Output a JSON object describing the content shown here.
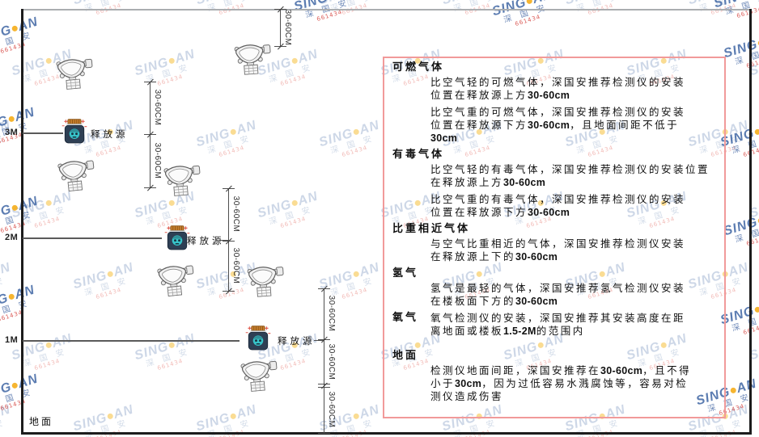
{
  "watermark": {
    "prefix": "SING",
    "suffix": "AN",
    "sub": "深 国 安",
    "code": "661434"
  },
  "diagram": {
    "heights": [
      "3M",
      "2M",
      "1M"
    ],
    "ground": "地面",
    "sources": [
      {
        "label": "释放源"
      },
      {
        "label": "释放源"
      },
      {
        "label": "释放源"
      }
    ],
    "dims": [
      "30-60CM",
      "30-60CM",
      "30-60CM",
      "30-60CM",
      "30-60CM",
      "30-60CM",
      "30-60CM",
      "30-60CM"
    ]
  },
  "panel": {
    "sections": [
      {
        "title": "可燃气体",
        "paragraphs": [
          {
            "lines": [
              [
                {
                  "t": "比空气轻的可燃气体，深国安推荐检测仪的安装"
                }
              ],
              [
                {
                  "t": "位置在释放源上方"
                },
                {
                  "t": "30-60cm",
                  "b": true
                }
              ]
            ]
          },
          {
            "lines": [
              [
                {
                  "t": "比空气重的可燃气体，深国安推荐检测仪的安装"
                }
              ],
              [
                {
                  "t": "位置在释放源下方"
                },
                {
                  "t": "30-60cm",
                  "b": true
                },
                {
                  "t": "，且地面间距不低于"
                }
              ],
              [
                {
                  "t": "30cm",
                  "b": true
                }
              ]
            ]
          }
        ]
      },
      {
        "title": "有毒气体",
        "paragraphs": [
          {
            "lines": [
              [
                {
                  "t": "比空气轻的有毒气体，深国安推荐检测仪的安装位置"
                }
              ],
              [
                {
                  "t": "在释放源上方"
                },
                {
                  "t": "30-60cm",
                  "b": true
                }
              ]
            ]
          },
          {
            "lines": [
              [
                {
                  "t": "比空气重的有毒气体，深国安推荐检测仪的安装"
                }
              ],
              [
                {
                  "t": "位置在释放源下方"
                },
                {
                  "t": "30-60cm",
                  "b": true
                }
              ]
            ]
          }
        ]
      },
      {
        "title": "比重相近气体",
        "paragraphs": [
          {
            "lines": [
              [
                {
                  "t": "与空气比重相近的气体，深国安推荐检测仪安装"
                }
              ],
              [
                {
                  "t": "在释放源上下的"
                },
                {
                  "t": "30-60cm",
                  "b": true
                }
              ]
            ]
          }
        ]
      },
      {
        "title": "氢气",
        "paragraphs": [
          {
            "lines": [
              [
                {
                  "t": "氢气是最轻的气体，深国安推荐氢气检测仪安装"
                }
              ],
              [
                {
                  "t": "在楼板面下方的"
                },
                {
                  "t": "30-60cm",
                  "b": true
                }
              ]
            ]
          }
        ]
      },
      {
        "title": "氧气",
        "inline": true,
        "paragraphs": [
          {
            "lines": [
              [
                {
                  "t": "氧气检测仪的安装，深国安推荐其安装高度在距"
                }
              ],
              [
                {
                  "t": "离地面或楼板"
                },
                {
                  "t": "1.5-2M",
                  "b": true
                },
                {
                  "t": "的范围内"
                }
              ]
            ]
          }
        ]
      },
      {
        "title": "地面",
        "ground": true,
        "paragraphs": [
          {
            "lines": [
              [
                {
                  "t": "检测仪地面间距，深国安推荐在"
                },
                {
                  "t": "30-60cm",
                  "b": true
                },
                {
                  "t": "，且不得"
                }
              ],
              [
                {
                  "t": "小于"
                },
                {
                  "t": "30cm",
                  "b": true
                },
                {
                  "t": "，因为过低容易水溅腐蚀等，容易对检"
                }
              ],
              [
                {
                  "t": "测仪造成伤害"
                }
              ]
            ]
          }
        ]
      }
    ]
  }
}
